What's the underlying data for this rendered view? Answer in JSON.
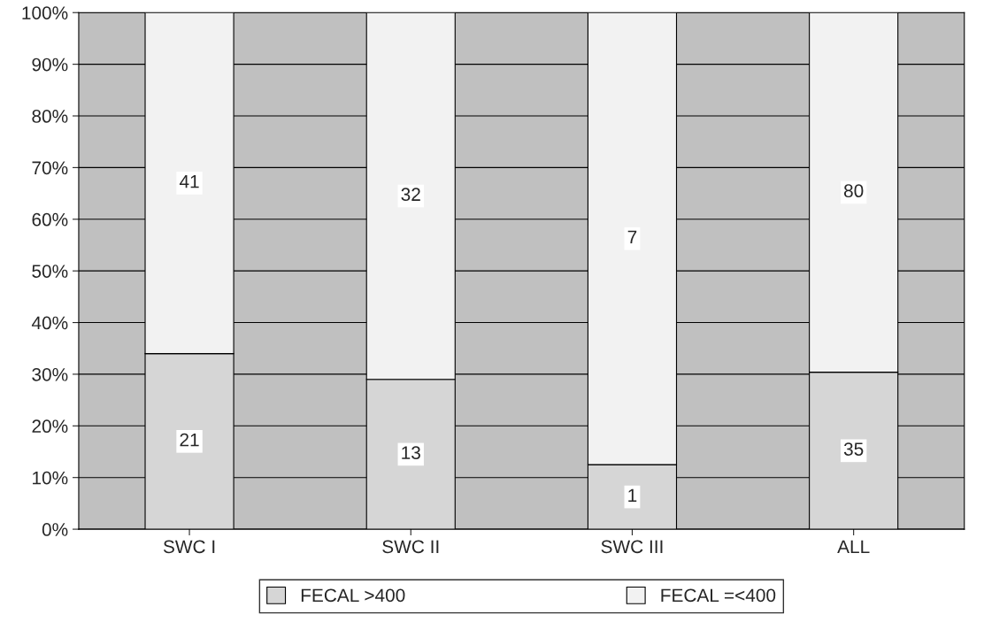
{
  "chart_data": {
    "type": "bar",
    "stacked": true,
    "categories": [
      "SWC I",
      "SWC II",
      "SWC III",
      "ALL"
    ],
    "series": [
      {
        "name": "FECAL >400",
        "color": "#d6d6d6",
        "values": [
          34,
          29,
          12.5,
          30.4
        ]
      },
      {
        "name": "FECAL =<400",
        "color": "#f2f2f2",
        "values": [
          66,
          71,
          87.5,
          69.6
        ]
      }
    ],
    "annotations": [
      "21",
      "13",
      "1",
      "35",
      "41",
      "32",
      "7",
      "80"
    ],
    "ylim": [
      0,
      100
    ],
    "yticks": [
      {
        "value": 0,
        "label": "0%"
      },
      {
        "value": 10,
        "label": "10%"
      },
      {
        "value": 20,
        "label": "20%"
      },
      {
        "value": 30,
        "label": "30%"
      },
      {
        "value": 40,
        "label": "40%"
      },
      {
        "value": 50,
        "label": "50%"
      },
      {
        "value": 60,
        "label": "60%"
      },
      {
        "value": 70,
        "label": "70%"
      },
      {
        "value": 80,
        "label": "80%"
      },
      {
        "value": 90,
        "label": "90%"
      },
      {
        "value": 100,
        "label": "100%"
      }
    ],
    "grid": "y",
    "legend": "bottom"
  }
}
